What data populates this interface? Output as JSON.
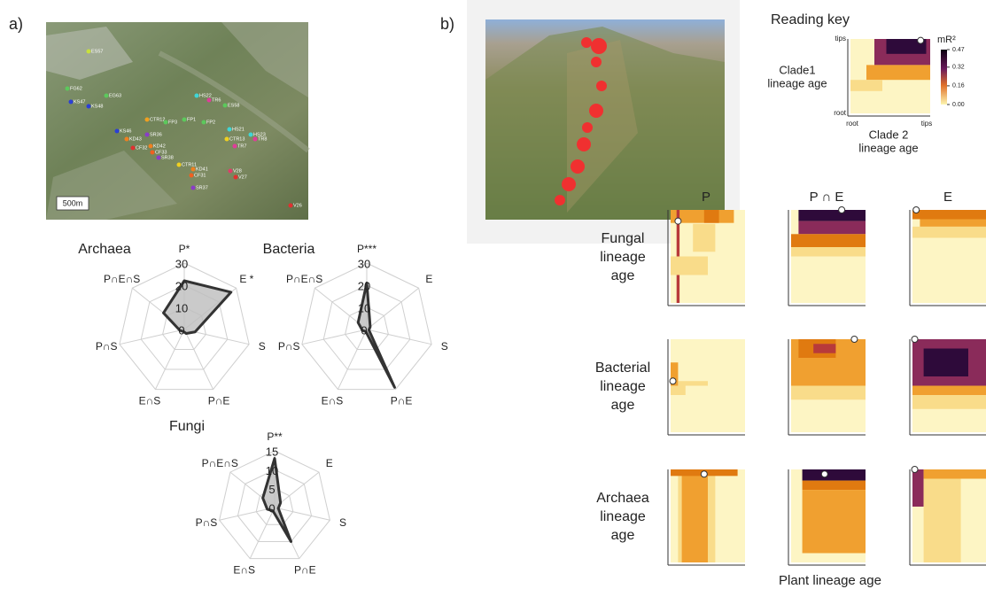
{
  "panel_a_label": "a)",
  "panel_b_label": "b)",
  "map": {
    "scale_label": "500m",
    "sites": [
      {
        "label": "ES57",
        "color": "#c8e03c"
      },
      {
        "label": "FG62",
        "color": "#5cc85c"
      },
      {
        "label": "EG63",
        "color": "#5cc85c"
      },
      {
        "label": "KS47",
        "color": "#2b3fd6"
      },
      {
        "label": "KS48",
        "color": "#2b3fd6"
      },
      {
        "label": "HS22",
        "color": "#3fd6d6"
      },
      {
        "label": "TR6",
        "color": "#e03c9a"
      },
      {
        "label": "ES58",
        "color": "#5cc85c"
      },
      {
        "label": "CTR12",
        "color": "#f0a020"
      },
      {
        "label": "FP3",
        "color": "#5cc85c"
      },
      {
        "label": "FP1",
        "color": "#5cc85c"
      },
      {
        "label": "FP2",
        "color": "#5cc85c"
      },
      {
        "label": "HS21",
        "color": "#3fd6d6"
      },
      {
        "label": "HS23",
        "color": "#3fd6d6"
      },
      {
        "label": "TR8",
        "color": "#e03c9a"
      },
      {
        "label": "CTR13",
        "color": "#f0d020"
      },
      {
        "label": "TR7",
        "color": "#e03c9a"
      },
      {
        "label": "KS46",
        "color": "#2b3fd6"
      },
      {
        "label": "KD43",
        "color": "#f08020"
      },
      {
        "label": "SR36",
        "color": "#8a3cc8"
      },
      {
        "label": "KD42",
        "color": "#f08020"
      },
      {
        "label": "CF33",
        "color": "#f06020"
      },
      {
        "label": "CF32",
        "color": "#e03030"
      },
      {
        "label": "SR38",
        "color": "#8a3cc8"
      },
      {
        "label": "CTR11",
        "color": "#f0d020"
      },
      {
        "label": "KD41",
        "color": "#f08020"
      },
      {
        "label": "CF31",
        "color": "#f06020"
      },
      {
        "label": "V28",
        "color": "#e03c6a"
      },
      {
        "label": "V27",
        "color": "#e03030"
      },
      {
        "label": "SR37",
        "color": "#8a3cc8"
      },
      {
        "label": "V26",
        "color": "#e03030"
      }
    ]
  },
  "chart_data": [
    {
      "type": "radar",
      "title": "Archaea",
      "axes": [
        "P*",
        "E *",
        "S",
        "P∩E",
        "E∩S",
        "P∩S",
        "P∩E∩S"
      ],
      "values": [
        22,
        27,
        5,
        2,
        1,
        2,
        12
      ],
      "rlim": [
        0,
        30
      ],
      "rticks": [
        0,
        10,
        20,
        30
      ],
      "color": "#333333",
      "fill": "#bdbdbd"
    },
    {
      "type": "radar",
      "title": "Bacteria",
      "axes": [
        "P***",
        "E",
        "S",
        "P∩E",
        "E∩S",
        "P∩S",
        "P∩E∩S"
      ],
      "values": [
        21,
        2,
        1,
        29,
        1,
        2,
        5
      ],
      "rlim": [
        0,
        30
      ],
      "rticks": [
        0,
        10,
        20,
        30
      ],
      "color": "#333333",
      "fill": "#bdbdbd"
    },
    {
      "type": "radar",
      "title": "Fungi",
      "axes": [
        "P**",
        "E",
        "S",
        "P∩E",
        "E∩S",
        "P∩S",
        "P∩E∩S"
      ],
      "values": [
        13,
        2,
        1,
        10,
        1,
        2,
        4
      ],
      "rlim": [
        0,
        15
      ],
      "rticks": [
        0,
        5,
        10,
        15
      ],
      "color": "#333333",
      "fill": "#bdbdbd"
    }
  ],
  "reading_key": {
    "title": "Reading key",
    "y_top": "tips",
    "y_bottom": "root",
    "y_label": [
      "Clade1",
      "lineage age"
    ],
    "x_left": "root",
    "x_right": "tips",
    "x_label": [
      "Clade 2",
      "lineage age"
    ],
    "colorbar": {
      "title": "mR²",
      "ticks": [
        {
          "value": 0,
          "label": "0.00"
        },
        0.16,
        0.32,
        0.47
      ]
    }
  },
  "heatmaps": {
    "columns": [
      "P",
      "P ∩ E",
      "E"
    ],
    "rows": [
      [
        "Fungal",
        "lineage",
        "age"
      ],
      [
        "Bacterial",
        "lineage",
        "age"
      ],
      [
        "Archaea",
        "lineage",
        "age"
      ]
    ],
    "x_label": "Plant lineage age"
  }
}
